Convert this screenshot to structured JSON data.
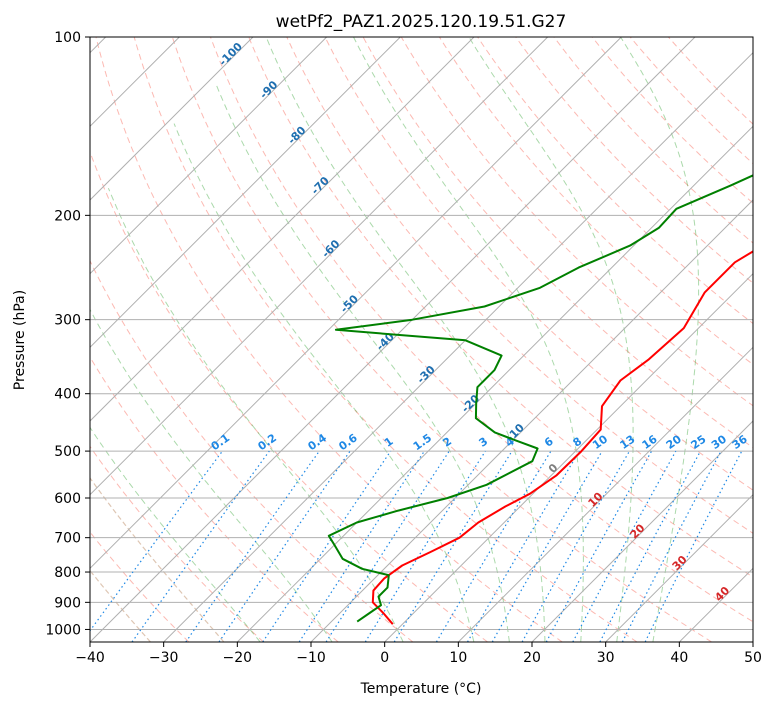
{
  "chart_data": {
    "type": "line",
    "title": "wetPf2_PAZ1.2025.120.19.51.G27",
    "xlabel": "Temperature (°C)",
    "ylabel": "Pressure (hPa)",
    "xlim": [
      -40,
      50
    ],
    "ylim": [
      1050,
      100
    ],
    "y_scale": "log",
    "grid": true,
    "x_ticks": [
      -40,
      -30,
      -20,
      -10,
      0,
      10,
      20,
      30,
      40,
      50
    ],
    "y_ticks": [
      1000,
      900,
      800,
      700,
      600,
      500,
      400,
      300,
      200,
      100
    ],
    "skew": 45,
    "series": [
      {
        "color": "#ff0000",
        "points": [
          [
            -1.3,
            980
          ],
          [
            -4,
            940
          ],
          [
            -7,
            900
          ],
          [
            -8.5,
            860
          ],
          [
            -8.7,
            820
          ],
          [
            -8,
            780
          ],
          [
            -6,
            740
          ],
          [
            -4,
            700
          ],
          [
            -3.5,
            660
          ],
          [
            -2,
            620
          ],
          [
            -0.4,
            590
          ],
          [
            0.7,
            550
          ],
          [
            0.8,
            500
          ],
          [
            0.5,
            460
          ],
          [
            -2.5,
            420
          ],
          [
            -3.5,
            380
          ],
          [
            -2.5,
            350
          ],
          [
            -2,
            310
          ],
          [
            -4,
            270
          ],
          [
            -4,
            240
          ],
          [
            -2,
            220
          ],
          [
            2.2,
            200
          ],
          [
            5.5,
            185
          ],
          [
            7,
            170
          ],
          [
            8.5,
            155
          ],
          [
            11,
            140
          ],
          [
            12,
            128
          ],
          [
            12.5,
            118
          ],
          [
            14,
            110
          ],
          [
            17,
            100
          ]
        ]
      },
      {
        "color": "#008000",
        "points": [
          [
            -6.5,
            970
          ],
          [
            -6,
            940
          ],
          [
            -5.5,
            910
          ],
          [
            -7,
            880
          ],
          [
            -7,
            850
          ],
          [
            -8.5,
            810
          ],
          [
            -13,
            790
          ],
          [
            -17,
            760
          ],
          [
            -20,
            720
          ],
          [
            -22,
            695
          ],
          [
            -20,
            660
          ],
          [
            -16,
            630
          ],
          [
            -11,
            600
          ],
          [
            -7.5,
            570
          ],
          [
            -4.5,
            520
          ],
          [
            -5.5,
            495
          ],
          [
            -9.5,
            480
          ],
          [
            -13.5,
            465
          ],
          [
            -18,
            440
          ],
          [
            -20,
            415
          ],
          [
            -22,
            390
          ],
          [
            -22,
            365
          ],
          [
            -23,
            345
          ],
          [
            -30,
            325
          ],
          [
            -49,
            312
          ],
          [
            -40,
            300
          ],
          [
            -32,
            285
          ],
          [
            -27,
            265
          ],
          [
            -24.5,
            245
          ],
          [
            -20.5,
            225
          ],
          [
            -19,
            210
          ],
          [
            -19.2,
            195
          ],
          [
            -15,
            178
          ],
          [
            -11,
            162
          ],
          [
            -9.5,
            148
          ],
          [
            -7.5,
            138
          ],
          [
            -4,
            128
          ],
          [
            1,
            116
          ],
          [
            3.5,
            107
          ],
          [
            3.5,
            100
          ]
        ]
      }
    ],
    "dry_adiabats": [
      -30,
      -20,
      -10,
      0,
      10,
      20,
      30,
      40,
      50,
      60,
      70,
      80,
      90,
      100,
      110,
      120,
      130,
      140,
      150,
      160,
      170
    ],
    "moist_adiabats": [
      -20,
      -10,
      0,
      10,
      15,
      20,
      25,
      30,
      35
    ],
    "isotherms": [
      -130,
      -120,
      -110,
      -100,
      -90,
      -80,
      -70,
      -60,
      -50,
      -40,
      -30,
      -20,
      -10,
      0,
      10,
      20,
      30,
      40
    ],
    "isotherm_labels": [
      "-100",
      "-90",
      "-80",
      "-70",
      "-60",
      "-50",
      "-40",
      "-30",
      "-20",
      "-10"
    ],
    "mixing_ratios": [
      "0.1",
      "0.2",
      "0.4",
      "0.6",
      "1",
      "1.5",
      "2",
      "3",
      "4",
      "6",
      "8",
      "10",
      "13",
      "16",
      "20",
      "25",
      "30",
      "36"
    ],
    "isotherm_low_labels": [
      "0",
      "10",
      "20",
      "30",
      "40"
    ],
    "colors": {
      "isotherm_label": "#1f6fb0",
      "mixing_ratio": "#1e88e5",
      "warm_label": "#d62728",
      "zero_label": "#7f7f7f",
      "dry_adiabat": "#fa8072",
      "moist_adiabat": "#2ca02c",
      "grid": "#b0b0b0"
    }
  }
}
